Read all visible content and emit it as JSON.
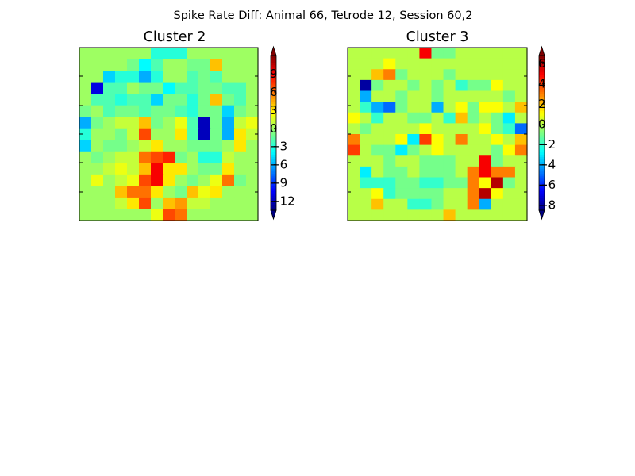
{
  "figure_title": "Spike Rate Diff: Animal 66, Tetrode 12, Session 60,2",
  "chart_data": [
    {
      "type": "heatmap",
      "title": "Cluster 2",
      "colormap": "jet",
      "vmin": -13.5,
      "vmax": 12,
      "colorbar_ticks": [
        9,
        6,
        3,
        0,
        -3,
        -6,
        -9,
        -12
      ],
      "colorbar_tick_labels": [
        "9",
        "6",
        "3",
        "0",
        "−3",
        "−6",
        "−9",
        "−12"
      ],
      "grid": [
        [
          0,
          0,
          0,
          0,
          0,
          0,
          -3,
          -3,
          -3,
          0,
          0,
          0,
          0,
          0,
          0
        ],
        [
          0,
          0,
          0,
          0,
          -1,
          -4,
          -2,
          0,
          0,
          -1,
          -1,
          4,
          0,
          0,
          0
        ],
        [
          0,
          0,
          -5,
          -3,
          -3,
          -6,
          -3,
          0,
          0,
          -2,
          -1,
          -2,
          0,
          0,
          0
        ],
        [
          0,
          -11,
          -2,
          -2,
          0,
          -1,
          -1,
          -4,
          -2,
          -2,
          -1,
          -1,
          -2,
          -2,
          0
        ],
        [
          0,
          -2,
          -2,
          -3,
          -2,
          -2,
          -5,
          -1,
          -1,
          -3,
          -1,
          4,
          -1,
          -2,
          0
        ],
        [
          -1,
          0,
          -2,
          -1,
          -1,
          -2,
          -1,
          -1,
          -2,
          -3,
          -1,
          -1,
          -5,
          -1,
          0
        ],
        [
          -6,
          -1,
          0,
          1,
          1,
          4,
          -1,
          0,
          2,
          -2,
          -12,
          -1,
          -6,
          1,
          2
        ],
        [
          -3,
          0,
          0,
          -1,
          1,
          7,
          0,
          0,
          3,
          -2,
          -12,
          -1,
          -6,
          3,
          1
        ],
        [
          -5,
          0,
          -1,
          -1,
          0,
          1,
          3,
          0,
          0,
          -1,
          -1,
          -1,
          0,
          3,
          0
        ],
        [
          0,
          -1,
          0,
          1,
          1,
          6,
          7,
          8,
          -1,
          0,
          -3,
          -3,
          1,
          0,
          0
        ],
        [
          0,
          0,
          1,
          2,
          1,
          4,
          9,
          3,
          3,
          0,
          -1,
          -1,
          3,
          0,
          0
        ],
        [
          0,
          2,
          0,
          1,
          2,
          7,
          9,
          3,
          0,
          -1,
          0,
          2,
          6,
          -1,
          0
        ],
        [
          0,
          0,
          0,
          4,
          6,
          6,
          3,
          0,
          -1,
          4,
          2,
          3,
          0,
          0,
          0
        ],
        [
          0,
          0,
          0,
          1,
          3,
          7,
          0,
          4,
          5,
          1,
          1,
          0,
          0,
          0,
          0
        ],
        [
          0,
          0,
          0,
          0,
          0,
          0,
          2,
          7,
          6,
          0,
          0,
          0,
          0,
          0,
          0
        ]
      ]
    },
    {
      "type": "heatmap",
      "title": "Cluster 3",
      "colormap": "jet",
      "vmin": -8.5,
      "vmax": 6.8,
      "colorbar_ticks": [
        6,
        4,
        2,
        0,
        -2,
        -4,
        -6,
        -8
      ],
      "colorbar_tick_labels": [
        "6",
        "4",
        "2",
        "0",
        "−2",
        "−4",
        "−6",
        "−8"
      ],
      "grid": [
        [
          0,
          0,
          0,
          0,
          0,
          0,
          5,
          -1,
          -1,
          0,
          0,
          0,
          0,
          0,
          0
        ],
        [
          0,
          0,
          0,
          1,
          0,
          0,
          0,
          0,
          0,
          0,
          0,
          0,
          0,
          0,
          0
        ],
        [
          0,
          0,
          2,
          3,
          -1,
          0,
          0,
          0,
          -1,
          0,
          0,
          0,
          0,
          0,
          0
        ],
        [
          0,
          -8,
          -1,
          0,
          0,
          -1,
          0,
          -1,
          0,
          -2,
          -1,
          -1,
          1,
          0,
          0
        ],
        [
          0,
          -4,
          0,
          0,
          -1,
          0,
          0,
          -1,
          0,
          0,
          0,
          0,
          0,
          -1,
          0
        ],
        [
          0,
          -2,
          -4,
          -5,
          -1,
          0,
          0,
          -4,
          0,
          1,
          -1,
          1,
          1,
          0,
          2
        ],
        [
          1,
          0,
          -2,
          0,
          0,
          -1,
          -1,
          0,
          -2,
          2,
          -1,
          0,
          -1,
          -3,
          0
        ],
        [
          0,
          -1,
          0,
          0,
          0,
          0,
          1,
          0,
          0,
          0,
          0,
          1,
          -1,
          -2,
          -5
        ],
        [
          3,
          0,
          0,
          0,
          1,
          -3,
          4,
          1,
          0,
          3,
          0,
          0,
          1,
          0,
          2
        ],
        [
          4,
          0,
          -1,
          -1,
          -3,
          -1,
          0,
          1,
          0,
          0,
          0,
          0,
          -1,
          1,
          3
        ],
        [
          0,
          0,
          0,
          -1,
          0,
          0,
          -1,
          -1,
          -1,
          0,
          0,
          5,
          -1,
          0,
          0
        ],
        [
          0,
          -3,
          0,
          -1,
          -1,
          0,
          -1,
          -1,
          -1,
          0,
          3,
          5,
          3,
          3,
          0
        ],
        [
          0,
          -2,
          -2,
          -2,
          -1,
          -1,
          -2,
          -2,
          -1,
          -1,
          3,
          1,
          6,
          -1,
          0
        ],
        [
          0,
          0,
          1,
          -2,
          -1,
          -1,
          -1,
          -1,
          0,
          0,
          3,
          6,
          1,
          0,
          0
        ],
        [
          0,
          0,
          2,
          0,
          0,
          -2,
          -2,
          -1,
          0,
          0,
          3,
          -4,
          0,
          0,
          0
        ],
        [
          0,
          0,
          0,
          0,
          0,
          0,
          0,
          0,
          2,
          0,
          0,
          0,
          0,
          0,
          0
        ]
      ]
    }
  ]
}
